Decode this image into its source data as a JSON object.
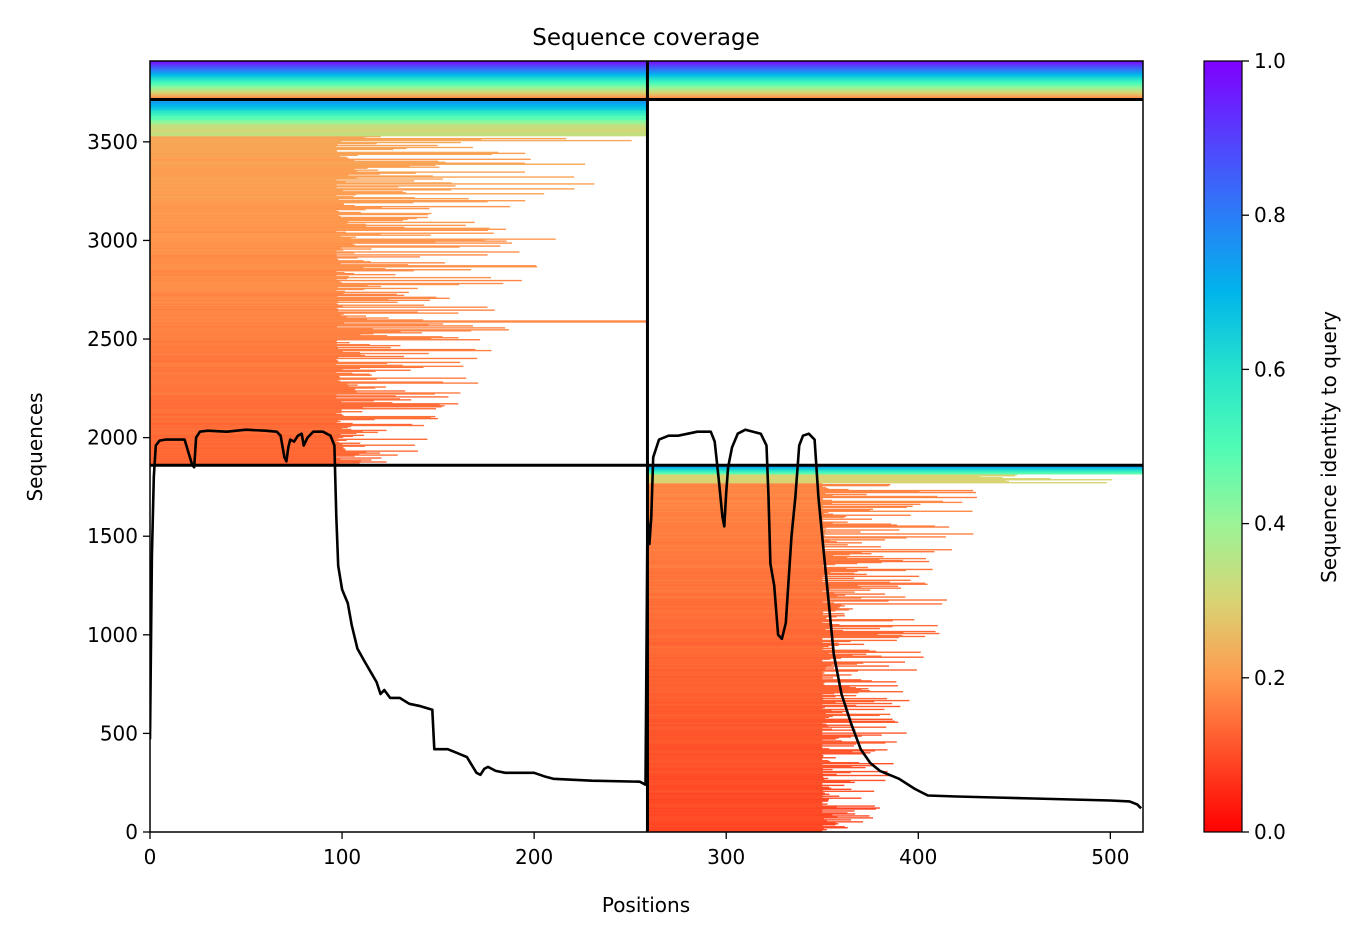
{
  "chart_data": {
    "type": "heatmap",
    "title": "Sequence coverage",
    "xlabel": "Positions",
    "ylabel": "Sequences",
    "xlim": [
      0,
      517
    ],
    "ylim": [
      0,
      3910
    ],
    "xticks": [
      0,
      100,
      200,
      300,
      400,
      500
    ],
    "yticks": [
      0,
      500,
      1000,
      1500,
      2000,
      2500,
      3000,
      3500
    ],
    "grid": false,
    "colorbar": {
      "label": "Sequence identity to query",
      "colormap": "rainbow_r",
      "range": [
        0,
        1
      ],
      "ticks": [
        "0.0",
        "0.2",
        "0.4",
        "0.6",
        "0.8",
        "1.0"
      ],
      "stops": [
        {
          "v": 0.0,
          "color": "#ff0000"
        },
        {
          "v": 0.1,
          "color": "#ff4d27"
        },
        {
          "v": 0.2,
          "color": "#ff9a4f"
        },
        {
          "v": 0.3,
          "color": "#d8d474"
        },
        {
          "v": 0.4,
          "color": "#9bf497"
        },
        {
          "v": 0.5,
          "color": "#4ffcb6"
        },
        {
          "v": 0.6,
          "color": "#25e2cc"
        },
        {
          "v": 0.7,
          "color": "#00b5eb"
        },
        {
          "v": 0.8,
          "color": "#2b7df7"
        },
        {
          "v": 0.9,
          "color": "#5540fd"
        },
        {
          "v": 1.0,
          "color": "#8000ff"
        }
      ]
    },
    "chain_boundary_positions": [
      259
    ],
    "sequence_block_boundaries": [
      1860,
      3715
    ],
    "blocks": [
      {
        "name_visible": false,
        "x_range": [
          0,
          259
        ],
        "y_range": [
          1860,
          3715
        ],
        "identity_median": 0.18
      },
      {
        "name_visible": false,
        "x_range": [
          259,
          517
        ],
        "y_range": [
          0,
          1860
        ],
        "identity_median": 0.13
      },
      {
        "name_visible": false,
        "x_range": [
          0,
          517
        ],
        "y_range": [
          3715,
          3910
        ],
        "identity_median": 0.55
      }
    ],
    "coverage_line": {
      "color": "#000000",
      "x": [
        0,
        1,
        2,
        3,
        5,
        8,
        12,
        18,
        22,
        23,
        24,
        26,
        30,
        40,
        50,
        60,
        66,
        68,
        70,
        71,
        72,
        73,
        75,
        77,
        79,
        80,
        82,
        85,
        90,
        94,
        96,
        97,
        98,
        100,
        103,
        105,
        108,
        112,
        115,
        118,
        120,
        122,
        125,
        130,
        135,
        140,
        147,
        148,
        150,
        155,
        160,
        165,
        170,
        172,
        174,
        176,
        180,
        185,
        200,
        206,
        210,
        230,
        255,
        258,
        259,
        260,
        261,
        262,
        265,
        270,
        275,
        285,
        292,
        294,
        296,
        298,
        299,
        300,
        301,
        303,
        306,
        310,
        318,
        321,
        322,
        323,
        325,
        327,
        329,
        331,
        334,
        336,
        338,
        340,
        343,
        346,
        348,
        350,
        353,
        356,
        360,
        365,
        370,
        375,
        380,
        390,
        398,
        402,
        405,
        420,
        440,
        460,
        480,
        500,
        510,
        514,
        516
      ],
      "y": [
        470,
        1400,
        1800,
        1960,
        1985,
        1990,
        1990,
        1990,
        1860,
        1850,
        2000,
        2030,
        2035,
        2030,
        2040,
        2035,
        2030,
        2010,
        1900,
        1880,
        1950,
        1990,
        1980,
        2010,
        2020,
        1960,
        2000,
        2030,
        2030,
        2010,
        1960,
        1600,
        1350,
        1230,
        1160,
        1050,
        930,
        860,
        810,
        760,
        700,
        720,
        680,
        680,
        650,
        640,
        620,
        420,
        420,
        420,
        400,
        380,
        300,
        290,
        320,
        330,
        310,
        300,
        300,
        280,
        270,
        260,
        255,
        240,
        1600,
        1460,
        1600,
        1900,
        1990,
        2010,
        2010,
        2030,
        2030,
        1980,
        1800,
        1600,
        1550,
        1720,
        1850,
        1950,
        2020,
        2040,
        2020,
        1960,
        1700,
        1360,
        1250,
        1000,
        980,
        1060,
        1500,
        1700,
        1960,
        2010,
        2020,
        1990,
        1700,
        1500,
        1200,
        900,
        700,
        550,
        420,
        350,
        310,
        270,
        220,
        200,
        185,
        180,
        175,
        170,
        165,
        160,
        155,
        140,
        120
      ]
    }
  }
}
